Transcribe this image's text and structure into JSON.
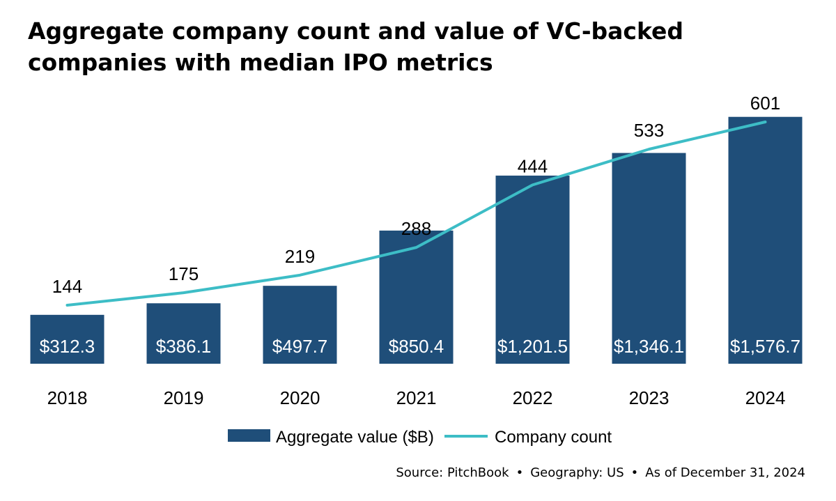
{
  "title": "Aggregate company count and value of VC-backed companies with median IPO metrics",
  "source": {
    "source_text": "Source: PitchBook",
    "separator": "•",
    "geography_text": "Geography: US",
    "date_text": "As of December 31, 2024"
  },
  "colors": {
    "bar": "#1f4e79",
    "line": "#3dbdc6",
    "bar_label": "#ffffff",
    "text": "#000000"
  },
  "chart_data": {
    "type": "bar",
    "title": "Aggregate company count and value of VC-backed companies with median IPO metrics",
    "categories": [
      "2018",
      "2019",
      "2020",
      "2021",
      "2022",
      "2023",
      "2024"
    ],
    "series": [
      {
        "name": "Aggregate value ($B)",
        "type": "bar",
        "values": [
          312.3,
          386.1,
          497.7,
          850.4,
          1201.5,
          1346.1,
          1576.7
        ],
        "labels": [
          "$312.3",
          "$386.1",
          "$497.7",
          "$850.4",
          "$1,201.5",
          "$1,346.1",
          "$1,576.7"
        ]
      },
      {
        "name": "Company count",
        "type": "line",
        "values": [
          144,
          175,
          219,
          288,
          444,
          533,
          601
        ],
        "labels": [
          "144",
          "175",
          "219",
          "288",
          "444",
          "533",
          "601"
        ]
      }
    ],
    "xlabel": "",
    "ylabel": "",
    "bar_axis_range": [
      0,
      1600
    ],
    "line_axis_range": [
      0,
      660
    ],
    "grid": false,
    "legend_position": "bottom-center"
  }
}
